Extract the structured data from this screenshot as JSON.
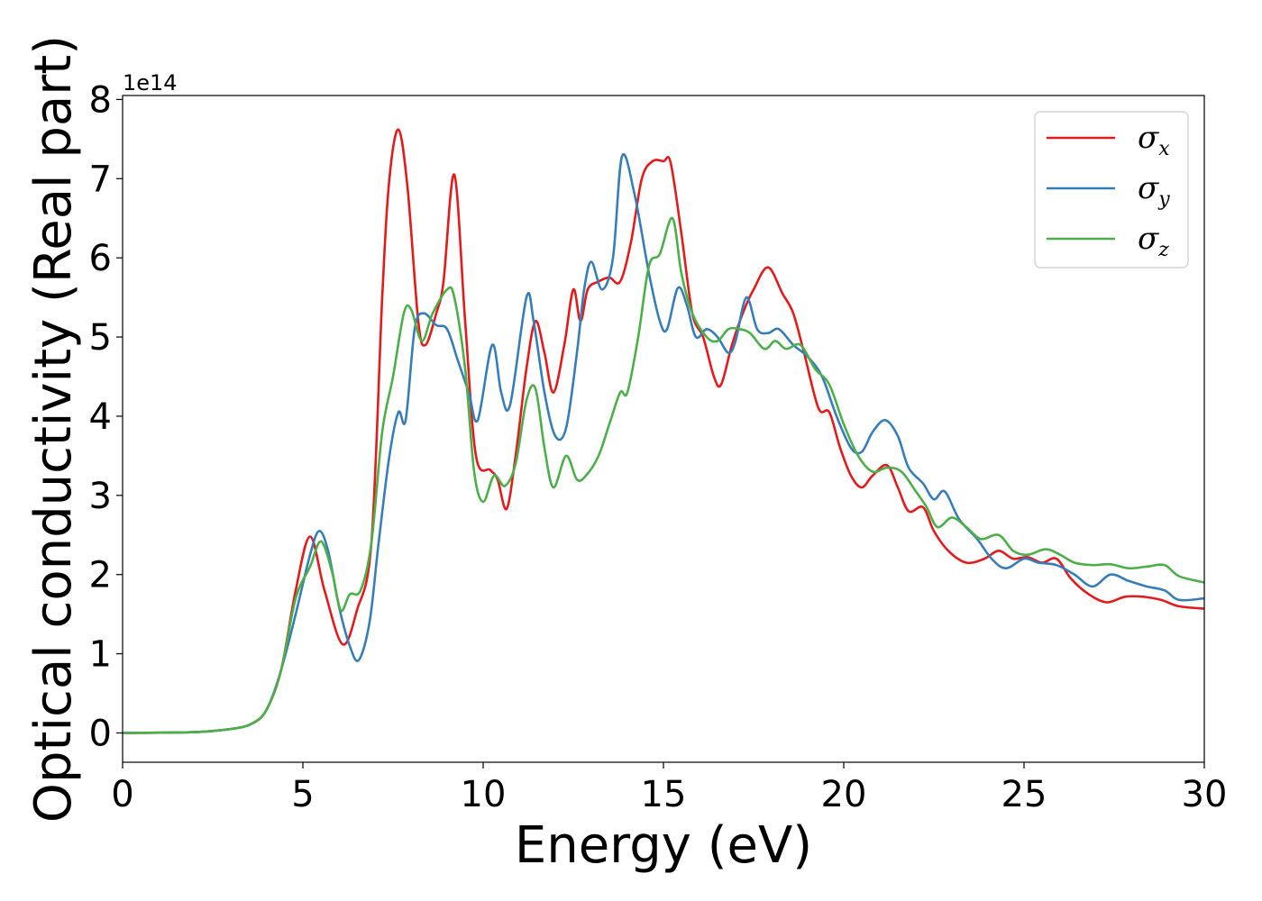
{
  "chart_data": {
    "type": "line",
    "xlabel": "Energy (eV)",
    "ylabel": "Optical conductivity (Real part)",
    "y_offset_label": "1e14",
    "xlim": [
      0,
      30
    ],
    "ylim": [
      -0.37,
      8.05
    ],
    "xticks": [
      0,
      5,
      10,
      15,
      20,
      25,
      30
    ],
    "yticks": [
      0,
      1,
      2,
      3,
      4,
      5,
      6,
      7,
      8
    ],
    "grid": false,
    "legend_position": "top-right",
    "series": [
      {
        "name": "σx",
        "legend_symbol": "σ",
        "legend_subscript": "x",
        "color": "#e41a1c",
        "points": [
          [
            0,
            0
          ],
          [
            2,
            0.01
          ],
          [
            3,
            0.05
          ],
          [
            3.6,
            0.12
          ],
          [
            4,
            0.3
          ],
          [
            4.4,
            0.8
          ],
          [
            4.8,
            1.8
          ],
          [
            5.2,
            2.48
          ],
          [
            5.6,
            1.8
          ],
          [
            6.1,
            1.12
          ],
          [
            6.5,
            1.55
          ],
          [
            6.9,
            2.4
          ],
          [
            7.2,
            5.5
          ],
          [
            7.4,
            7.0
          ],
          [
            7.65,
            7.62
          ],
          [
            7.9,
            6.9
          ],
          [
            8.2,
            5.2
          ],
          [
            8.4,
            4.9
          ],
          [
            8.7,
            5.3
          ],
          [
            8.9,
            5.7
          ],
          [
            9.2,
            7.05
          ],
          [
            9.5,
            5.2
          ],
          [
            9.8,
            3.5
          ],
          [
            10.2,
            3.32
          ],
          [
            10.4,
            3.2
          ],
          [
            10.65,
            2.83
          ],
          [
            10.9,
            3.5
          ],
          [
            11.2,
            4.6
          ],
          [
            11.45,
            5.2
          ],
          [
            11.7,
            4.8
          ],
          [
            11.95,
            4.3
          ],
          [
            12.25,
            4.9
          ],
          [
            12.5,
            5.6
          ],
          [
            12.7,
            5.2
          ],
          [
            12.9,
            5.6
          ],
          [
            13.2,
            5.7
          ],
          [
            13.5,
            5.75
          ],
          [
            13.8,
            5.7
          ],
          [
            14.1,
            6.2
          ],
          [
            14.4,
            7.0
          ],
          [
            14.7,
            7.22
          ],
          [
            15.0,
            7.22
          ],
          [
            15.2,
            7.2
          ],
          [
            15.5,
            6.3
          ],
          [
            15.8,
            5.3
          ],
          [
            16.1,
            5.0
          ],
          [
            16.4,
            4.5
          ],
          [
            16.6,
            4.4
          ],
          [
            16.9,
            4.9
          ],
          [
            17.2,
            5.3
          ],
          [
            17.5,
            5.6
          ],
          [
            17.9,
            5.88
          ],
          [
            18.3,
            5.55
          ],
          [
            18.6,
            5.3
          ],
          [
            18.9,
            4.8
          ],
          [
            19.3,
            4.1
          ],
          [
            19.6,
            4.05
          ],
          [
            19.9,
            3.6
          ],
          [
            20.2,
            3.25
          ],
          [
            20.5,
            3.1
          ],
          [
            20.8,
            3.25
          ],
          [
            21.2,
            3.38
          ],
          [
            21.5,
            3.1
          ],
          [
            21.8,
            2.8
          ],
          [
            22.2,
            2.85
          ],
          [
            22.5,
            2.55
          ],
          [
            22.9,
            2.3
          ],
          [
            23.4,
            2.15
          ],
          [
            23.9,
            2.2
          ],
          [
            24.3,
            2.3
          ],
          [
            24.7,
            2.2
          ],
          [
            25.1,
            2.22
          ],
          [
            25.5,
            2.15
          ],
          [
            25.9,
            2.2
          ],
          [
            26.3,
            1.95
          ],
          [
            26.8,
            1.75
          ],
          [
            27.3,
            1.65
          ],
          [
            27.8,
            1.72
          ],
          [
            28.3,
            1.72
          ],
          [
            28.8,
            1.68
          ],
          [
            29.3,
            1.6
          ],
          [
            30,
            1.57
          ]
        ]
      },
      {
        "name": "σy",
        "legend_symbol": "σ",
        "legend_subscript": "y",
        "color": "#377eb8",
        "points": [
          [
            0,
            0
          ],
          [
            2,
            0.01
          ],
          [
            3,
            0.05
          ],
          [
            3.6,
            0.12
          ],
          [
            4,
            0.3
          ],
          [
            4.4,
            0.8
          ],
          [
            4.8,
            1.5
          ],
          [
            5.2,
            2.25
          ],
          [
            5.45,
            2.55
          ],
          [
            5.7,
            2.3
          ],
          [
            6.0,
            1.6
          ],
          [
            6.3,
            1.1
          ],
          [
            6.55,
            0.92
          ],
          [
            6.85,
            1.4
          ],
          [
            7.1,
            2.4
          ],
          [
            7.4,
            3.5
          ],
          [
            7.65,
            4.05
          ],
          [
            7.85,
            3.95
          ],
          [
            8.1,
            5.1
          ],
          [
            8.35,
            5.3
          ],
          [
            8.7,
            5.15
          ],
          [
            9.0,
            5.1
          ],
          [
            9.3,
            4.7
          ],
          [
            9.6,
            4.3
          ],
          [
            9.85,
            3.95
          ],
          [
            10.25,
            4.9
          ],
          [
            10.5,
            4.3
          ],
          [
            10.75,
            4.15
          ],
          [
            11.2,
            5.5
          ],
          [
            11.4,
            5.2
          ],
          [
            11.7,
            4.3
          ],
          [
            12.0,
            3.75
          ],
          [
            12.3,
            3.85
          ],
          [
            12.6,
            4.8
          ],
          [
            12.8,
            5.6
          ],
          [
            13.0,
            5.95
          ],
          [
            13.3,
            5.6
          ],
          [
            13.6,
            6.0
          ],
          [
            13.85,
            7.28
          ],
          [
            14.2,
            6.8
          ],
          [
            14.6,
            5.8
          ],
          [
            14.9,
            5.2
          ],
          [
            15.1,
            5.1
          ],
          [
            15.4,
            5.62
          ],
          [
            15.65,
            5.4
          ],
          [
            15.9,
            5.0
          ],
          [
            16.2,
            5.1
          ],
          [
            16.5,
            5.0
          ],
          [
            16.8,
            4.8
          ],
          [
            17.0,
            4.95
          ],
          [
            17.3,
            5.5
          ],
          [
            17.6,
            5.1
          ],
          [
            17.9,
            5.05
          ],
          [
            18.2,
            5.1
          ],
          [
            18.6,
            4.9
          ],
          [
            19.0,
            4.75
          ],
          [
            19.4,
            4.5
          ],
          [
            19.8,
            4.0
          ],
          [
            20.2,
            3.6
          ],
          [
            20.5,
            3.55
          ],
          [
            20.8,
            3.8
          ],
          [
            21.15,
            3.95
          ],
          [
            21.5,
            3.75
          ],
          [
            21.8,
            3.35
          ],
          [
            22.2,
            3.15
          ],
          [
            22.5,
            2.95
          ],
          [
            22.8,
            3.05
          ],
          [
            23.2,
            2.7
          ],
          [
            23.7,
            2.45
          ],
          [
            24.1,
            2.2
          ],
          [
            24.5,
            2.08
          ],
          [
            25.0,
            2.2
          ],
          [
            25.4,
            2.15
          ],
          [
            25.9,
            2.12
          ],
          [
            26.4,
            2.0
          ],
          [
            26.9,
            1.85
          ],
          [
            27.4,
            2.0
          ],
          [
            27.9,
            1.92
          ],
          [
            28.4,
            1.85
          ],
          [
            28.9,
            1.8
          ],
          [
            29.3,
            1.68
          ],
          [
            30,
            1.7
          ]
        ]
      },
      {
        "name": "σz",
        "legend_symbol": "σ",
        "legend_subscript": "z",
        "color": "#4daf4a",
        "points": [
          [
            0,
            0
          ],
          [
            2,
            0.01
          ],
          [
            3,
            0.05
          ],
          [
            3.6,
            0.12
          ],
          [
            4,
            0.3
          ],
          [
            4.4,
            0.8
          ],
          [
            4.8,
            1.7
          ],
          [
            5.2,
            2.1
          ],
          [
            5.5,
            2.42
          ],
          [
            5.8,
            2.05
          ],
          [
            6.05,
            1.55
          ],
          [
            6.3,
            1.75
          ],
          [
            6.6,
            1.8
          ],
          [
            6.9,
            2.4
          ],
          [
            7.2,
            3.8
          ],
          [
            7.5,
            4.5
          ],
          [
            7.8,
            5.3
          ],
          [
            8.0,
            5.35
          ],
          [
            8.3,
            4.95
          ],
          [
            8.6,
            5.3
          ],
          [
            9.0,
            5.6
          ],
          [
            9.2,
            5.5
          ],
          [
            9.5,
            4.6
          ],
          [
            9.75,
            3.3
          ],
          [
            10.0,
            2.92
          ],
          [
            10.3,
            3.25
          ],
          [
            10.6,
            3.12
          ],
          [
            10.9,
            3.4
          ],
          [
            11.2,
            4.2
          ],
          [
            11.45,
            4.35
          ],
          [
            11.7,
            3.6
          ],
          [
            11.95,
            3.1
          ],
          [
            12.3,
            3.5
          ],
          [
            12.6,
            3.2
          ],
          [
            12.85,
            3.25
          ],
          [
            13.2,
            3.5
          ],
          [
            13.5,
            3.9
          ],
          [
            13.8,
            4.3
          ],
          [
            14.0,
            4.3
          ],
          [
            14.3,
            5.0
          ],
          [
            14.6,
            5.9
          ],
          [
            14.9,
            6.05
          ],
          [
            15.25,
            6.5
          ],
          [
            15.5,
            5.8
          ],
          [
            15.8,
            5.3
          ],
          [
            16.2,
            5.0
          ],
          [
            16.5,
            4.95
          ],
          [
            16.8,
            5.1
          ],
          [
            17.1,
            5.1
          ],
          [
            17.4,
            5.05
          ],
          [
            17.8,
            4.85
          ],
          [
            18.1,
            4.95
          ],
          [
            18.4,
            4.85
          ],
          [
            18.8,
            4.9
          ],
          [
            19.2,
            4.6
          ],
          [
            19.6,
            4.4
          ],
          [
            20.0,
            3.9
          ],
          [
            20.4,
            3.5
          ],
          [
            20.8,
            3.3
          ],
          [
            21.2,
            3.35
          ],
          [
            21.6,
            3.3
          ],
          [
            22.0,
            3.05
          ],
          [
            22.3,
            2.85
          ],
          [
            22.6,
            2.6
          ],
          [
            23.0,
            2.72
          ],
          [
            23.4,
            2.6
          ],
          [
            23.8,
            2.45
          ],
          [
            24.3,
            2.5
          ],
          [
            24.7,
            2.3
          ],
          [
            25.1,
            2.25
          ],
          [
            25.6,
            2.32
          ],
          [
            26.0,
            2.25
          ],
          [
            26.4,
            2.15
          ],
          [
            26.9,
            2.12
          ],
          [
            27.4,
            2.13
          ],
          [
            27.9,
            2.08
          ],
          [
            28.4,
            2.1
          ],
          [
            28.9,
            2.12
          ],
          [
            29.3,
            1.98
          ],
          [
            30,
            1.9
          ]
        ]
      }
    ]
  }
}
